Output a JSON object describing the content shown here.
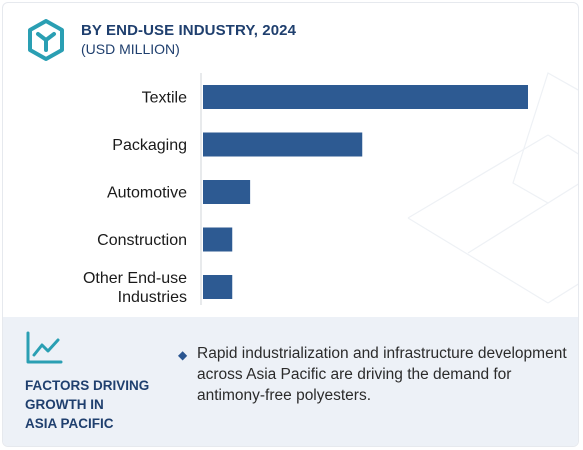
{
  "header": {
    "title": "BY END-USE INDUSTRY, 2024",
    "subtitle": "(USD MILLION)",
    "icon": "cube-logo-icon"
  },
  "chart_data": {
    "type": "bar",
    "orientation": "horizontal",
    "title": "BY END-USE INDUSTRY, 2024",
    "subtitle": "(USD MILLION)",
    "categories": [
      "Textile",
      "Packaging",
      "Automotive",
      "Construction",
      "Other End-use Industries"
    ],
    "category_lines": [
      [
        "Textile"
      ],
      [
        "Packaging"
      ],
      [
        "Automotive"
      ],
      [
        "Construction"
      ],
      [
        "Other End-use",
        "Industries"
      ]
    ],
    "values": [
      100,
      49,
      14.5,
      9,
      9
    ],
    "xlim": [
      0,
      100
    ],
    "grid": false,
    "legend": "none",
    "bar_color": "#2d5a92"
  },
  "footer": {
    "icon": "trend-line-icon",
    "heading_lines": [
      "FACTORS DRIVING",
      "GROWTH IN",
      "ASIA PACIFIC"
    ],
    "bullet_icon": "diamond-bullet-icon",
    "driver_text": "Rapid industrialization and infrastructure development across Asia Pacific are driving the demand for antimony-free polyesters."
  },
  "colors": {
    "accent": "#1f3f6e",
    "icon_teal": "#2a9fb3",
    "bar": "#2d5a92",
    "footer_bg": "#edf1f7"
  }
}
